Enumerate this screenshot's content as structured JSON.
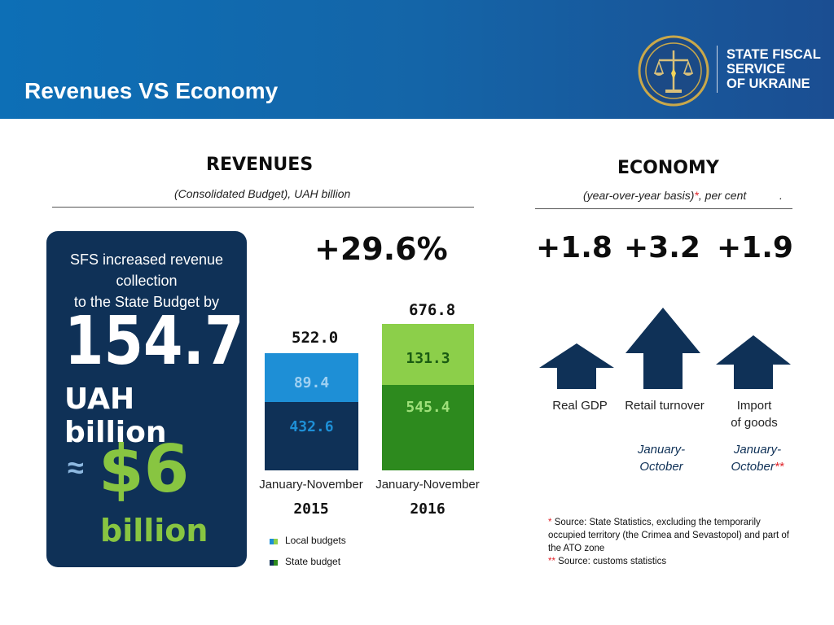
{
  "header": {
    "title": "Revenues VS Economy",
    "logo_text": [
      "STATE FISCAL",
      "SERVICE",
      "OF UKRAINE"
    ],
    "logo_icon": "scales-of-justice-emblem",
    "colors": {
      "banner": "#1465a8",
      "navy": "#0f3157",
      "green": "#88c541",
      "blue": "#1e8fd6"
    }
  },
  "revenues": {
    "title": "REVENUES",
    "subtitle": "(Consolidated Budget), UAH billion",
    "highlight": {
      "line1": "SFS increased revenue collection",
      "line2": "to the State Budget by",
      "amount": "154.7",
      "unit": "UAH billion",
      "approx_sign": "≈",
      "usd": "$6",
      "usd_unit": "billion"
    },
    "growth": "+29.6%",
    "bars": [
      {
        "period": "January-November",
        "year": "2015",
        "total": "522.0",
        "top": "89.4",
        "bottom": "432.6"
      },
      {
        "period": "January-November",
        "year": "2016",
        "total": "676.8",
        "top": "131.3",
        "bottom": "545.4"
      }
    ],
    "legend": [
      "Local budgets",
      "State budget"
    ]
  },
  "economy": {
    "title": "ECONOMY",
    "subtitle_main": "(year-over-year basis)",
    "subtitle_star": "*",
    "subtitle_rest": ", per cent",
    "subtitle_dot": ".",
    "indicators": [
      {
        "value": "+1.8",
        "label_line1": "Real GDP",
        "label_line2": ""
      },
      {
        "value": "+3.2",
        "label_line1": "Retail turnover",
        "label_line2": "",
        "period_line1": "January-",
        "period_line2": "October",
        "period_mark": ""
      },
      {
        "value": "+1.9",
        "label_line1": "Import",
        "label_line2": "of goods",
        "period_line1": "January-",
        "period_line2": "October",
        "period_mark": "**"
      }
    ],
    "footnotes": {
      "f1_mark": "*",
      "f1_text": "Source: State Statistics, excluding the temporarily occupied  territory (the Crimea and Sevastopol) and part of the ATO zone",
      "f2_mark": "**",
      "f2_text": "Source: customs statistics"
    }
  }
}
